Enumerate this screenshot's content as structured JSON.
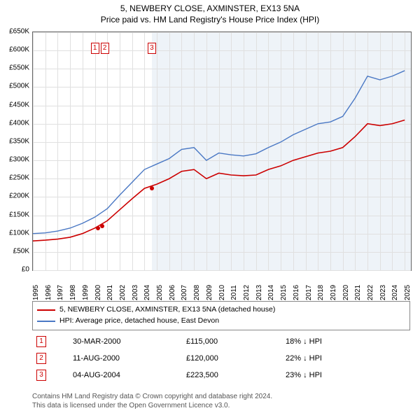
{
  "title_line1": "5, NEWBERY CLOSE, AXMINSTER, EX13 5NA",
  "title_line2": "Price paid vs. HM Land Registry's House Price Index (HPI)",
  "chart": {
    "type": "line",
    "xlim": [
      1995,
      2025.5
    ],
    "ylim": [
      0,
      650000
    ],
    "ytick_step": 50000,
    "ytick_prefix": "£",
    "ytick_suffix": "K",
    "xtick_step": 1,
    "xticks": [
      1995,
      1996,
      1997,
      1998,
      1999,
      2000,
      2001,
      2002,
      2003,
      2004,
      2005,
      2006,
      2007,
      2008,
      2009,
      2010,
      2011,
      2012,
      2013,
      2014,
      2015,
      2016,
      2017,
      2018,
      2019,
      2020,
      2021,
      2022,
      2023,
      2024,
      2025
    ],
    "grid_color": "#e0e0e0",
    "background_color": "#ffffff",
    "shade_color": "#eef3f8",
    "shade_from_x": 2004.6,
    "series": [
      {
        "name": "5, NEWBERY CLOSE, AXMINSTER, EX13 5NA (detached house)",
        "color": "#cc0000",
        "width": 1.6,
        "points": [
          [
            1995,
            80000
          ],
          [
            1996,
            82000
          ],
          [
            1997,
            85000
          ],
          [
            1998,
            90000
          ],
          [
            1999,
            100000
          ],
          [
            2000,
            115000
          ],
          [
            2001,
            135000
          ],
          [
            2002,
            165000
          ],
          [
            2003,
            195000
          ],
          [
            2004,
            223500
          ],
          [
            2005,
            235000
          ],
          [
            2006,
            250000
          ],
          [
            2007,
            270000
          ],
          [
            2008,
            275000
          ],
          [
            2009,
            250000
          ],
          [
            2010,
            265000
          ],
          [
            2011,
            260000
          ],
          [
            2012,
            258000
          ],
          [
            2013,
            260000
          ],
          [
            2014,
            275000
          ],
          [
            2015,
            285000
          ],
          [
            2016,
            300000
          ],
          [
            2017,
            310000
          ],
          [
            2018,
            320000
          ],
          [
            2019,
            325000
          ],
          [
            2020,
            335000
          ],
          [
            2021,
            365000
          ],
          [
            2022,
            400000
          ],
          [
            2023,
            395000
          ],
          [
            2024,
            400000
          ],
          [
            2025,
            410000
          ]
        ]
      },
      {
        "name": "HPI: Average price, detached house, East Devon",
        "color": "#4a78c4",
        "width": 1.4,
        "points": [
          [
            1995,
            100000
          ],
          [
            1996,
            102000
          ],
          [
            1997,
            107000
          ],
          [
            1998,
            115000
          ],
          [
            1999,
            128000
          ],
          [
            2000,
            145000
          ],
          [
            2001,
            168000
          ],
          [
            2002,
            205000
          ],
          [
            2003,
            240000
          ],
          [
            2004,
            275000
          ],
          [
            2005,
            290000
          ],
          [
            2006,
            305000
          ],
          [
            2007,
            330000
          ],
          [
            2008,
            335000
          ],
          [
            2009,
            300000
          ],
          [
            2010,
            320000
          ],
          [
            2011,
            315000
          ],
          [
            2012,
            312000
          ],
          [
            2013,
            318000
          ],
          [
            2014,
            335000
          ],
          [
            2015,
            350000
          ],
          [
            2016,
            370000
          ],
          [
            2017,
            385000
          ],
          [
            2018,
            400000
          ],
          [
            2019,
            405000
          ],
          [
            2020,
            420000
          ],
          [
            2021,
            470000
          ],
          [
            2022,
            530000
          ],
          [
            2023,
            520000
          ],
          [
            2024,
            530000
          ],
          [
            2025,
            545000
          ]
        ]
      }
    ],
    "sale_markers": [
      {
        "n": "1",
        "x": 2000.25,
        "y": 115000,
        "color": "#cc0000"
      },
      {
        "n": "2",
        "x": 2000.6,
        "y": 120000,
        "color": "#cc0000"
      },
      {
        "n": "3",
        "x": 2004.6,
        "y": 223500,
        "color": "#cc0000"
      }
    ],
    "callout_boxes": [
      {
        "labels": [
          "1",
          "2"
        ],
        "x": 2000.4,
        "color": "#cc0000"
      },
      {
        "labels": [
          "3"
        ],
        "x": 2004.6,
        "color": "#cc0000"
      }
    ]
  },
  "legend": {
    "rows": [
      {
        "color": "#cc0000",
        "label": "5, NEWBERY CLOSE, AXMINSTER, EX13 5NA (detached house)"
      },
      {
        "color": "#4a78c4",
        "label": "HPI: Average price, detached house, East Devon"
      }
    ]
  },
  "sales_table": {
    "rows": [
      {
        "n": "1",
        "date": "30-MAR-2000",
        "price": "£115,000",
        "diff": "18% ↓ HPI"
      },
      {
        "n": "2",
        "date": "11-AUG-2000",
        "price": "£120,000",
        "diff": "22% ↓ HPI"
      },
      {
        "n": "3",
        "date": "04-AUG-2004",
        "price": "£223,500",
        "diff": "23% ↓ HPI"
      }
    ],
    "num_color": "#cc0000"
  },
  "footer_line1": "Contains HM Land Registry data © Crown copyright and database right 2024.",
  "footer_line2": "This data is licensed under the Open Government Licence v3.0."
}
